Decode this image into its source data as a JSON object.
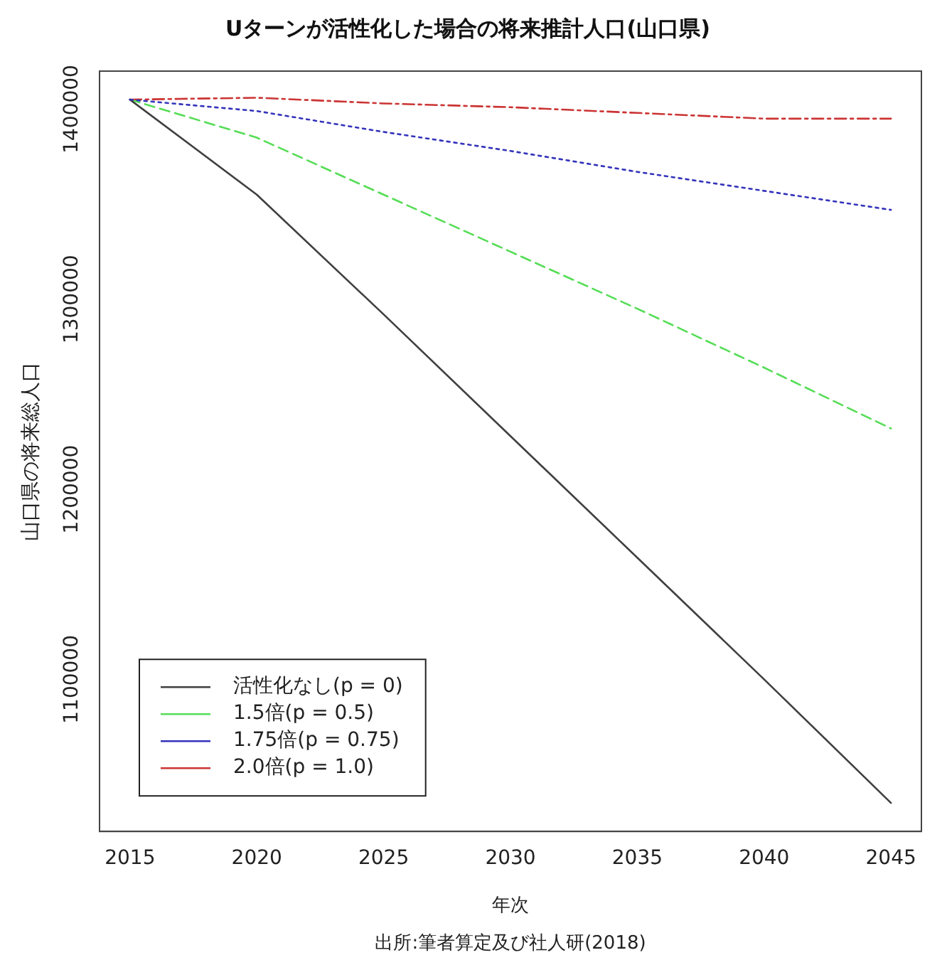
{
  "chart_data": {
    "type": "line",
    "title": "Uターンが活性化した場合の将来推計人口(山口県)",
    "xlabel": "年次",
    "ylabel": "山口県の将来総人口",
    "annotations": [
      "出所:筆者算定及び社人研(2018)"
    ],
    "x": [
      2015,
      2020,
      2025,
      2030,
      2035,
      2040,
      2045
    ],
    "series": [
      {
        "name": "活性化なし(p = 0)",
        "color": "#404040",
        "line_style": "solid",
        "values": [
          1405000,
          1355000,
          1292000,
          1228000,
          1164000,
          1100000,
          1035000
        ]
      },
      {
        "name": "1.5倍(p = 0.5)",
        "color": "#55dd55",
        "line_style": "dashed",
        "values": [
          1405000,
          1385000,
          1355000,
          1325000,
          1295000,
          1264000,
          1232000
        ]
      },
      {
        "name": "1.75倍(p = 0.75)",
        "color": "#3333bb",
        "line_style": "dotted",
        "values": [
          1405000,
          1399000,
          1388000,
          1378000,
          1367000,
          1357000,
          1347000
        ]
      },
      {
        "name": "2.0倍(p = 1.0)",
        "color": "#cc3333",
        "line_style": "dashdot",
        "values": [
          1405000,
          1406000,
          1403000,
          1401000,
          1398000,
          1395000,
          1395000
        ]
      }
    ],
    "xlim": [
      2013.8,
      2046.2
    ],
    "xticks": [
      2015,
      2020,
      2025,
      2030,
      2035,
      2040,
      2045
    ],
    "ylim": [
      1020000,
      1420000
    ],
    "yticks": [
      1100000,
      1200000,
      1300000,
      1400000
    ],
    "grid": false,
    "legend": "bottom left",
    "marker": "none"
  }
}
